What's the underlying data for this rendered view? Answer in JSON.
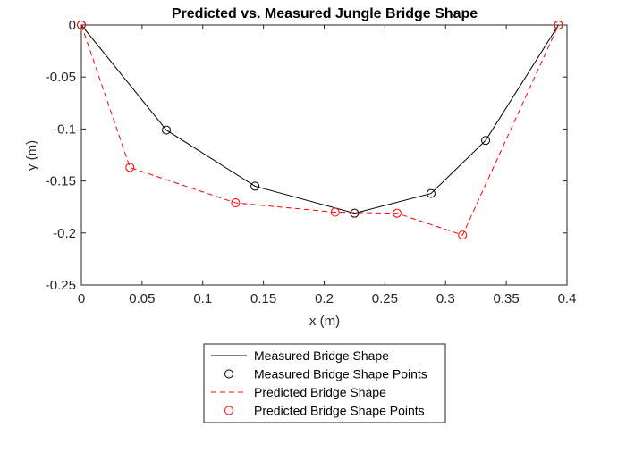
{
  "chart_data": {
    "type": "line",
    "title": "Predicted vs. Measured Jungle Bridge Shape",
    "xlabel": "x (m)",
    "ylabel": "y (m)",
    "xlim": [
      0,
      0.4
    ],
    "ylim": [
      -0.25,
      0
    ],
    "xticks": [
      0,
      0.05,
      0.1,
      0.15,
      0.2,
      0.25,
      0.3,
      0.35,
      0.4
    ],
    "xtick_labels": [
      "0",
      "0.05",
      "0.1",
      "0.15",
      "0.2",
      "0.25",
      "0.3",
      "0.35",
      "0.4"
    ],
    "yticks": [
      0,
      -0.05,
      -0.1,
      -0.15,
      -0.2,
      -0.25
    ],
    "ytick_labels": [
      "0",
      "-0.05",
      "-0.1",
      "-0.15",
      "-0.2",
      "-0.25"
    ],
    "grid": false,
    "legend_placement": "bottom-center-outside",
    "series": [
      {
        "name": "Measured Bridge Shape",
        "legend_marker": "Measured Bridge Shape Points",
        "color": "#000000",
        "line_style": "solid",
        "marker": "circle",
        "x": [
          0,
          0.07,
          0.143,
          0.225,
          0.288,
          0.333,
          0.393
        ],
        "y": [
          0,
          -0.101,
          -0.155,
          -0.181,
          -0.162,
          -0.111,
          0
        ]
      },
      {
        "name": "Predicted Bridge Shape",
        "legend_marker": "Predicted Bridge Shape Points",
        "color": "#ff0000",
        "line_style": "dashed",
        "marker": "circle",
        "x": [
          0,
          0.04,
          0.127,
          0.209,
          0.26,
          0.314,
          0.393
        ],
        "y": [
          0,
          -0.137,
          -0.171,
          -0.18,
          -0.181,
          -0.202,
          0
        ]
      }
    ]
  }
}
